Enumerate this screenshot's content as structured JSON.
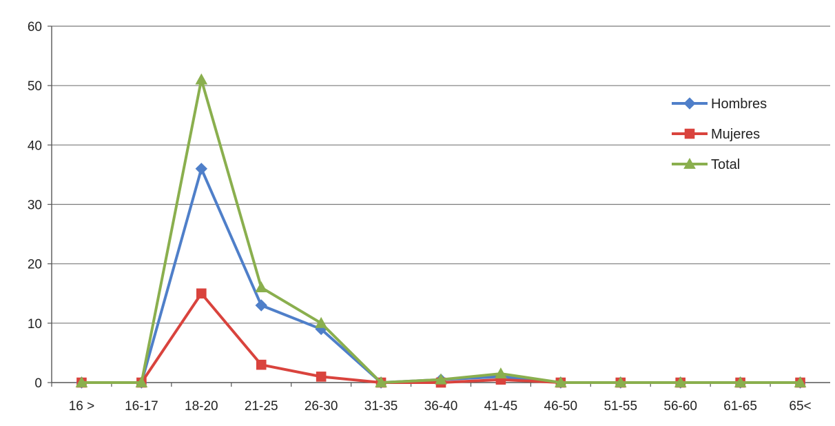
{
  "chart_data": {
    "type": "line",
    "title": "",
    "xlabel": "",
    "ylabel": "",
    "ylim": [
      0,
      60
    ],
    "yticks": [
      "0",
      "10",
      "20",
      "30",
      "40",
      "50",
      "60"
    ],
    "categories": [
      "16 >",
      "16-17",
      "18-20",
      "21-25",
      "26-30",
      "31-35",
      "36-40",
      "41-45",
      "46-50",
      "51-55",
      "56-60",
      "61-65",
      "65<"
    ],
    "grid": true,
    "legend_position": "right",
    "series": [
      {
        "name": "Hombres",
        "color": "#4f7fc9",
        "marker": "diamond",
        "values": [
          0,
          0,
          36,
          13,
          9,
          0,
          0.5,
          1,
          0,
          0,
          0,
          0,
          0
        ]
      },
      {
        "name": "Mujeres",
        "color": "#d9433d",
        "marker": "square",
        "values": [
          0,
          0,
          15,
          3,
          1,
          0,
          0,
          0.5,
          0,
          0,
          0,
          0,
          0
        ]
      },
      {
        "name": "Total",
        "color": "#8aaf4e",
        "marker": "triangle",
        "values": [
          0,
          0,
          51,
          16,
          10,
          0,
          0.5,
          1.5,
          0,
          0,
          0,
          0,
          0
        ]
      }
    ]
  }
}
